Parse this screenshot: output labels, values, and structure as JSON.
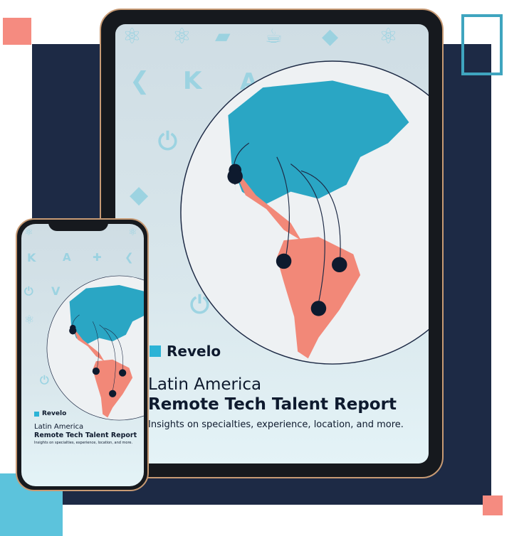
{
  "brand": {
    "name": "Revelo",
    "accent": "#2bb3d6",
    "navy": "#1d2a45",
    "salmon": "#f58b80"
  },
  "cover": {
    "title_line1": "Latin America",
    "title_line2": "Remote Tech Talent Report",
    "subtitle": "Insights on specialties, experience, location, and more."
  },
  "background_icons": [
    "react-icon",
    "angular-icon",
    "kotlin-icon",
    "flutter-icon",
    "java-icon",
    "ruby-icon",
    "spring-icon",
    "vue-icon",
    "python-icon"
  ]
}
